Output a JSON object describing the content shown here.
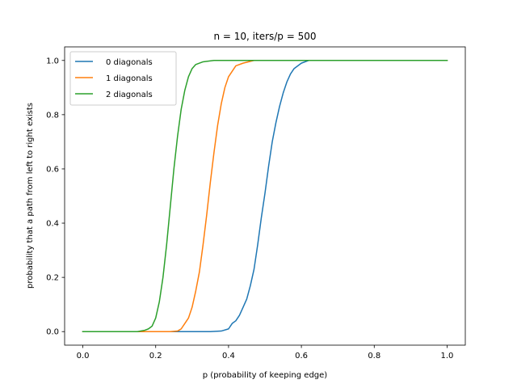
{
  "chart_data": {
    "type": "line",
    "title": "n = 10, iters/p = 500",
    "xlabel": "p (probability of keeping edge)",
    "ylabel": "probability that a path from left to right exists",
    "xlim": [
      -0.05,
      1.05
    ],
    "ylim": [
      -0.05,
      1.05
    ],
    "xticks": [
      0.0,
      0.2,
      0.4,
      0.6,
      0.8,
      1.0
    ],
    "xtick_labels": [
      "0.0",
      "0.2",
      "0.4",
      "0.6",
      "0.8",
      "1.0"
    ],
    "yticks": [
      0.0,
      0.2,
      0.4,
      0.6,
      0.8,
      1.0
    ],
    "ytick_labels": [
      "0.0",
      "0.2",
      "0.4",
      "0.6",
      "0.8",
      "1.0"
    ],
    "grid": false,
    "legend_position": "top-left",
    "series": [
      {
        "name": "0 diagonals",
        "color": "#1f77b4",
        "points": [
          [
            0.0,
            0.0
          ],
          [
            0.35,
            0.0
          ],
          [
            0.38,
            0.002
          ],
          [
            0.4,
            0.01
          ],
          [
            0.41,
            0.03
          ],
          [
            0.42,
            0.04
          ],
          [
            0.43,
            0.06
          ],
          [
            0.44,
            0.09
          ],
          [
            0.45,
            0.12
          ],
          [
            0.46,
            0.17
          ],
          [
            0.47,
            0.23
          ],
          [
            0.48,
            0.32
          ],
          [
            0.49,
            0.42
          ],
          [
            0.5,
            0.51
          ],
          [
            0.51,
            0.61
          ],
          [
            0.52,
            0.7
          ],
          [
            0.53,
            0.77
          ],
          [
            0.54,
            0.83
          ],
          [
            0.55,
            0.88
          ],
          [
            0.56,
            0.92
          ],
          [
            0.57,
            0.95
          ],
          [
            0.58,
            0.97
          ],
          [
            0.6,
            0.99
          ],
          [
            0.62,
            1.0
          ],
          [
            1.0,
            1.0
          ]
        ]
      },
      {
        "name": "1 diagonals",
        "color": "#ff7f0e",
        "points": [
          [
            0.0,
            0.0
          ],
          [
            0.24,
            0.0
          ],
          [
            0.26,
            0.002
          ],
          [
            0.27,
            0.01
          ],
          [
            0.28,
            0.03
          ],
          [
            0.29,
            0.05
          ],
          [
            0.3,
            0.09
          ],
          [
            0.31,
            0.15
          ],
          [
            0.32,
            0.22
          ],
          [
            0.33,
            0.32
          ],
          [
            0.34,
            0.43
          ],
          [
            0.35,
            0.55
          ],
          [
            0.36,
            0.66
          ],
          [
            0.37,
            0.76
          ],
          [
            0.38,
            0.84
          ],
          [
            0.39,
            0.9
          ],
          [
            0.4,
            0.94
          ],
          [
            0.41,
            0.96
          ],
          [
            0.42,
            0.98
          ],
          [
            0.44,
            0.99
          ],
          [
            0.47,
            1.0
          ],
          [
            1.0,
            1.0
          ]
        ]
      },
      {
        "name": "2 diagonals",
        "color": "#2ca02c",
        "points": [
          [
            0.0,
            0.0
          ],
          [
            0.15,
            0.0
          ],
          [
            0.17,
            0.005
          ],
          [
            0.18,
            0.01
          ],
          [
            0.19,
            0.02
          ],
          [
            0.2,
            0.05
          ],
          [
            0.21,
            0.11
          ],
          [
            0.22,
            0.2
          ],
          [
            0.23,
            0.32
          ],
          [
            0.24,
            0.46
          ],
          [
            0.25,
            0.6
          ],
          [
            0.26,
            0.72
          ],
          [
            0.27,
            0.82
          ],
          [
            0.28,
            0.89
          ],
          [
            0.29,
            0.94
          ],
          [
            0.3,
            0.97
          ],
          [
            0.31,
            0.985
          ],
          [
            0.33,
            0.995
          ],
          [
            0.36,
            1.0
          ],
          [
            1.0,
            1.0
          ]
        ]
      }
    ]
  }
}
